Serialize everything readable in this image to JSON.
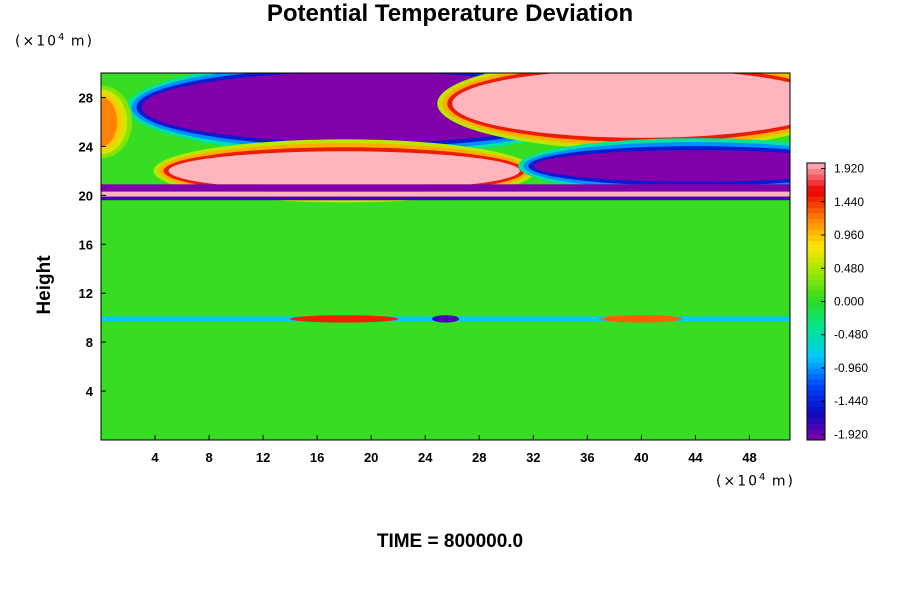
{
  "chart_data": {
    "type": "heatmap",
    "title": "Potential Temperature Deviation",
    "ylabel": "Height",
    "xlabel": "",
    "x_unit_prefix": "(×10",
    "x_unit_exp": "4",
    "x_unit_suffix": " m)",
    "y_unit_prefix": "(×10",
    "y_unit_exp": "4",
    "y_unit_suffix": " m)",
    "footer": "TIME = 800000.0",
    "xlim": [
      0,
      51
    ],
    "ylim": [
      0,
      30
    ],
    "x_ticks": [
      4,
      8,
      12,
      16,
      20,
      24,
      28,
      32,
      36,
      40,
      44,
      48
    ],
    "y_ticks": [
      4,
      8,
      12,
      16,
      20,
      24,
      28
    ],
    "colorbar": {
      "range": [
        -2.0,
        2.0
      ],
      "tick_values": [
        1.92,
        1.44,
        0.96,
        0.48,
        0.0,
        -0.48,
        -0.96,
        -1.44,
        -1.92
      ],
      "tick_labels": [
        "1.920",
        "1.440",
        "0.960",
        "0.480",
        "0.000",
        "-0.480",
        "-0.960",
        "-1.440",
        "-1.920"
      ]
    },
    "features": [
      {
        "kind": "background",
        "value": 0.05
      },
      {
        "kind": "ellipse",
        "cx": 19.5,
        "cy": 27.2,
        "rx": 16.5,
        "ry": 2.9,
        "value": -2.0
      },
      {
        "kind": "ellipse",
        "cx": 40,
        "cy": 27.5,
        "rx": 14.0,
        "ry": 2.8,
        "value": 2.0
      },
      {
        "kind": "ellipse",
        "cx": 0,
        "cy": 26.0,
        "rx": 1.2,
        "ry": 2.0,
        "value": 1.2
      },
      {
        "kind": "ellipse",
        "cx": 18,
        "cy": 22.0,
        "rx": 13.0,
        "ry": 1.6,
        "value": 2.0
      },
      {
        "kind": "ellipse",
        "cx": 44,
        "cy": 22.4,
        "rx": 12.0,
        "ry": 1.3,
        "value": -2.0
      },
      {
        "kind": "band",
        "y0": 20.3,
        "y1": 20.9,
        "value": -2.0
      },
      {
        "kind": "band",
        "y0": 19.9,
        "y1": 20.3,
        "value": 2.0
      },
      {
        "kind": "band",
        "y0": 19.6,
        "y1": 19.9,
        "value": -1.8
      },
      {
        "kind": "band",
        "y0": 9.7,
        "y1": 10.1,
        "value": -0.8
      },
      {
        "kind": "spot",
        "cx": 18,
        "cy": 9.9,
        "rx": 4.0,
        "ry": 0.3,
        "value": 1.5
      },
      {
        "kind": "spot",
        "cx": 40,
        "cy": 9.9,
        "rx": 3.0,
        "ry": 0.3,
        "value": 1.3
      },
      {
        "kind": "spot",
        "cx": 25.5,
        "cy": 9.9,
        "rx": 1.0,
        "ry": 0.3,
        "value": -1.8
      }
    ]
  }
}
